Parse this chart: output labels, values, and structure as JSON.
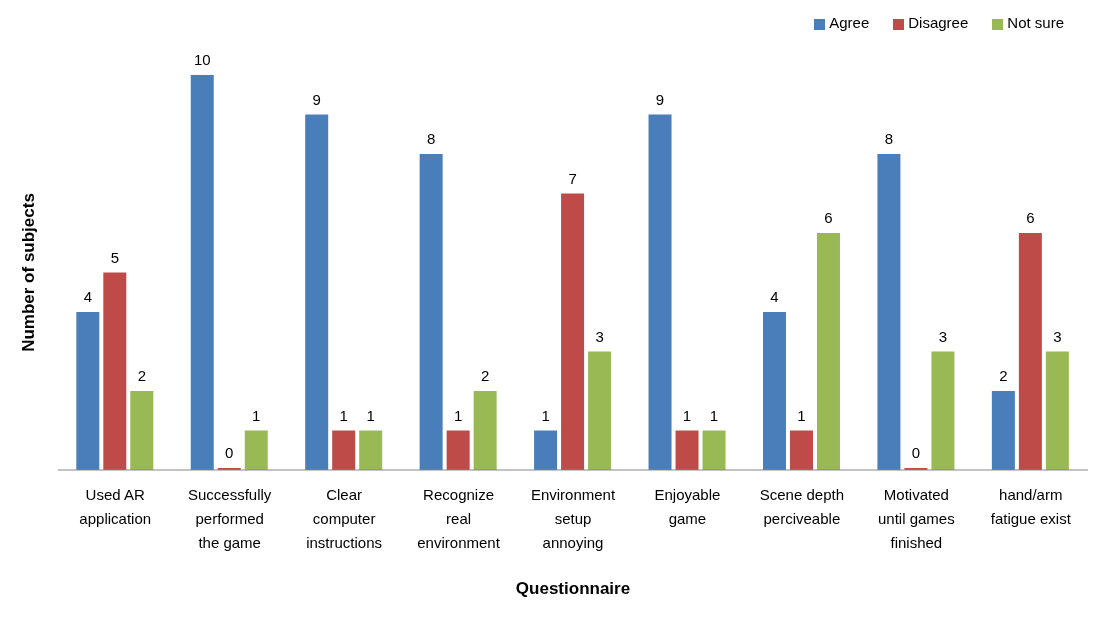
{
  "chart_data": {
    "type": "bar",
    "xlabel": "Questionnaire",
    "ylabel": "Number of subjects",
    "categories": [
      "Used AR\napplication",
      "Successfully\nperformed\nthe game",
      "Clear\ncomputer\ninstructions",
      "Recognize\nreal\nenvironment",
      "Environment\nsetup\nannoying",
      "Enjoyable\ngame",
      "Scene depth\nperciveable",
      "Motivated\nuntil games\nfinished",
      "hand/arm\nfatigue exist"
    ],
    "series": [
      {
        "name": "Agree",
        "color": "#4a7ebb",
        "values": [
          4,
          10,
          9,
          8,
          1,
          9,
          4,
          8,
          2
        ]
      },
      {
        "name": "Disagree",
        "color": "#be4b48",
        "values": [
          5,
          0,
          1,
          1,
          7,
          1,
          1,
          0,
          6
        ]
      },
      {
        "name": "Not sure",
        "color": "#98b954",
        "values": [
          2,
          1,
          1,
          2,
          3,
          1,
          6,
          3,
          3
        ]
      }
    ],
    "data_labels": true,
    "legend": "top right",
    "grid": false,
    "tick_labels": "x"
  }
}
